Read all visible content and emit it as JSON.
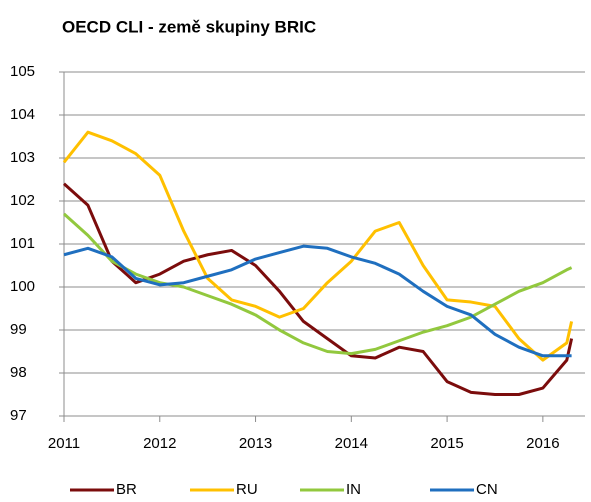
{
  "chart_data": {
    "type": "line",
    "title": "OECD CLI - země skupiny BRIC",
    "x": [
      2011,
      2011.25,
      2011.5,
      2011.75,
      2012,
      2012.25,
      2012.5,
      2012.75,
      2013,
      2013.25,
      2013.5,
      2013.75,
      2014,
      2014.25,
      2014.5,
      2014.75,
      2015,
      2015.25,
      2015.5,
      2015.75,
      2016,
      2016.25,
      2016.3
    ],
    "series": [
      {
        "name": "BR",
        "color": "#7b0c0c",
        "values": [
          102.4,
          101.9,
          100.6,
          100.1,
          100.3,
          100.6,
          100.75,
          100.85,
          100.5,
          99.9,
          99.2,
          98.8,
          98.4,
          98.35,
          98.6,
          98.5,
          97.8,
          97.55,
          97.5,
          97.5,
          97.65,
          98.3,
          98.8
        ]
      },
      {
        "name": "RU",
        "color": "#ffc000",
        "values": [
          102.9,
          103.6,
          103.4,
          103.1,
          102.6,
          101.3,
          100.2,
          99.7,
          99.55,
          99.3,
          99.5,
          100.1,
          100.6,
          101.3,
          101.5,
          100.5,
          99.7,
          99.65,
          99.55,
          98.8,
          98.3,
          98.7,
          99.2
        ]
      },
      {
        "name": "IN",
        "color": "#92c83e",
        "values": [
          101.7,
          101.2,
          100.6,
          100.3,
          100.1,
          100.0,
          99.8,
          99.6,
          99.35,
          99.0,
          98.7,
          98.5,
          98.45,
          98.55,
          98.75,
          98.95,
          99.1,
          99.3,
          99.6,
          99.9,
          100.1,
          100.4,
          100.45
        ]
      },
      {
        "name": "CN",
        "color": "#1f6fbf",
        "values": [
          100.75,
          100.9,
          100.7,
          100.2,
          100.05,
          100.1,
          100.25,
          100.4,
          100.65,
          100.8,
          100.95,
          100.9,
          100.7,
          100.55,
          100.3,
          99.9,
          99.55,
          99.35,
          98.9,
          98.6,
          98.4,
          98.4,
          98.4
        ]
      }
    ],
    "xlim": [
      2011,
      2016.44
    ],
    "xticks": [
      2011,
      2012,
      2013,
      2014,
      2015,
      2016
    ],
    "ylim": [
      97,
      105
    ],
    "yticks": [
      97,
      98,
      99,
      100,
      101,
      102,
      103,
      104,
      105
    ],
    "grid": true
  }
}
